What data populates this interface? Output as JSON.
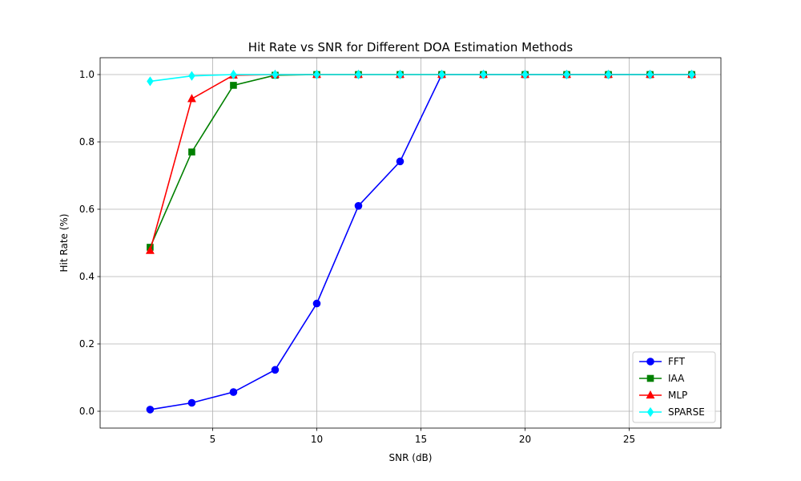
{
  "chart_data": {
    "type": "line",
    "title": "Hit Rate vs SNR for Different DOA Estimation Methods",
    "xlabel": "SNR (dB)",
    "ylabel": "Hit Rate (%)",
    "xlim": [
      -0.4,
      29.4
    ],
    "ylim": [
      -0.05,
      1.05
    ],
    "xticks": [
      5,
      10,
      15,
      20,
      25
    ],
    "xtick_labels": [
      "5",
      "10",
      "15",
      "20",
      "25"
    ],
    "yticks": [
      0.0,
      0.2,
      0.4,
      0.6,
      0.8,
      1.0
    ],
    "ytick_labels": [
      "0.0",
      "0.2",
      "0.4",
      "0.6",
      "0.8",
      "1.0"
    ],
    "grid": true,
    "legend_position": "lower-right",
    "series": [
      {
        "name": "FFT",
        "color": "#0000ff",
        "marker": "circle",
        "x": [
          2,
          4,
          6,
          8,
          10,
          12,
          14,
          16,
          18,
          20,
          22,
          24,
          26,
          28
        ],
        "y": [
          0.005,
          0.025,
          0.057,
          0.123,
          0.32,
          0.61,
          0.742,
          1.0,
          1.0,
          1.0,
          1.0,
          1.0,
          1.0,
          1.0
        ]
      },
      {
        "name": "IAA",
        "color": "#008000",
        "marker": "square",
        "x": [
          2,
          4,
          6,
          8,
          10,
          12,
          14,
          16,
          18,
          20,
          22,
          24,
          26,
          28
        ],
        "y": [
          0.487,
          0.77,
          0.968,
          0.998,
          1.0,
          1.0,
          1.0,
          1.0,
          1.0,
          1.0,
          1.0,
          1.0,
          1.0,
          1.0
        ]
      },
      {
        "name": "MLP",
        "color": "#ff0000",
        "marker": "triangle",
        "x": [
          2,
          4,
          6,
          8,
          10,
          12,
          14,
          16,
          18,
          20,
          22,
          24,
          26,
          28
        ],
        "y": [
          0.477,
          0.928,
          0.998,
          1.0,
          1.0,
          1.0,
          1.0,
          1.0,
          1.0,
          1.0,
          1.0,
          1.0,
          1.0,
          1.0
        ]
      },
      {
        "name": "SPARSE",
        "color": "#00ffff",
        "marker": "diamond",
        "x": [
          2,
          4,
          6,
          8,
          10,
          12,
          14,
          16,
          18,
          20,
          22,
          24,
          26,
          28
        ],
        "y": [
          0.98,
          0.996,
          1.0,
          1.0,
          1.0,
          1.0,
          1.0,
          1.0,
          1.0,
          1.0,
          1.0,
          1.0,
          1.0,
          1.0
        ]
      }
    ]
  }
}
